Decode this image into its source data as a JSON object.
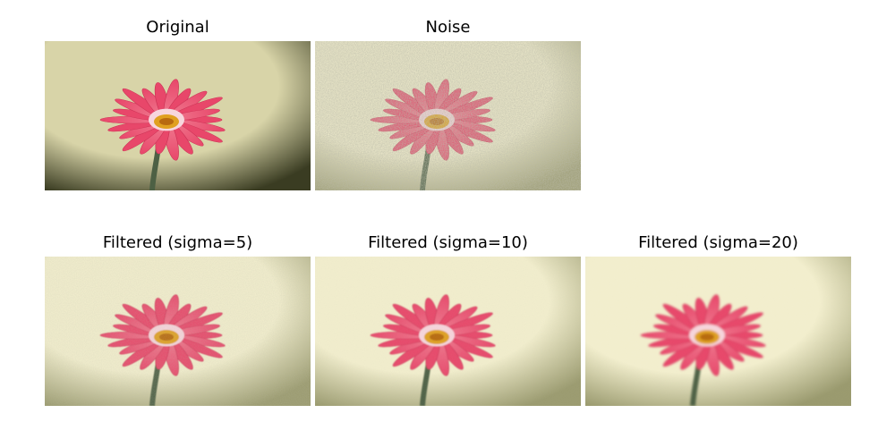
{
  "figure": {
    "panels": [
      {
        "title": "Original",
        "variant": "original",
        "noise": 0,
        "blur": 0
      },
      {
        "title": "Noise",
        "variant": "noise",
        "noise": 1,
        "blur": 0
      },
      {
        "title": "Filtered (sigma=5)",
        "variant": "filtered",
        "noise": 0.55,
        "blur": 0.6
      },
      {
        "title": "Filtered (sigma=10)",
        "variant": "filtered",
        "noise": 0.35,
        "blur": 0.9
      },
      {
        "title": "Filtered (sigma=20)",
        "variant": "filtered",
        "noise": 0.2,
        "blur": 1.2
      }
    ]
  },
  "colors": {
    "petal": "#e8476a",
    "petal_light": "#f07d92",
    "center": "#e0a020",
    "stem": "#4d6044",
    "bg_original_light": "#d8d4a8",
    "bg_original_dark": "#3a3c22",
    "bg_noise_light": "#f3efce",
    "bg_noise_dark": "#9a9a6e"
  }
}
